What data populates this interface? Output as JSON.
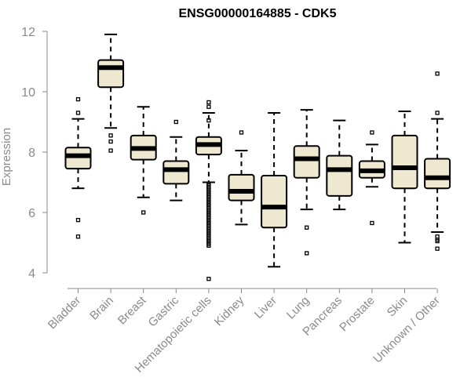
{
  "chart_data": {
    "type": "boxplot",
    "title": "ENSG00000164885 - CDK5",
    "ylabel": "Expression",
    "xlabel": "",
    "ylim": [
      4,
      12
    ],
    "yticks": [
      4,
      6,
      8,
      10,
      12
    ],
    "box_fill": "#efe8d0",
    "categories": [
      "Bladder",
      "Brain",
      "Breast",
      "Gastric",
      "Hematopoietic cells",
      "Kidney",
      "Liver",
      "Lung",
      "Pancreas",
      "Prostate",
      "Skin",
      "Unknown / Other"
    ],
    "boxes": [
      {
        "category": "Bladder",
        "whisker_low": 6.8,
        "q1": 7.45,
        "median": 7.88,
        "q3": 8.15,
        "whisker_high": 9.1,
        "outliers": [
          9.75,
          9.3,
          5.75,
          5.2
        ]
      },
      {
        "category": "Brain",
        "whisker_low": 8.8,
        "q1": 10.15,
        "median": 10.8,
        "q3": 11.05,
        "whisker_high": 11.9,
        "outliers": [
          8.55,
          8.35,
          8.05
        ]
      },
      {
        "category": "Breast",
        "whisker_low": 6.5,
        "q1": 7.75,
        "median": 8.12,
        "q3": 8.55,
        "whisker_high": 9.5,
        "outliers": [
          6.0
        ]
      },
      {
        "category": "Gastric",
        "whisker_low": 6.4,
        "q1": 6.95,
        "median": 7.42,
        "q3": 7.7,
        "whisker_high": 8.5,
        "outliers": [
          9.0
        ]
      },
      {
        "category": "Hematopoietic cells",
        "whisker_low": 7.0,
        "q1": 7.92,
        "median": 8.25,
        "q3": 8.5,
        "whisker_high": 9.3,
        "outliers": [
          9.65,
          9.5,
          9.05,
          3.8,
          4.9,
          5.0,
          5.1,
          5.2,
          5.3,
          5.4,
          5.5,
          5.6,
          5.7,
          5.8,
          5.9,
          6.0,
          6.1,
          6.2,
          6.3,
          6.4,
          6.5,
          6.6,
          6.7,
          6.8,
          6.9,
          4.95,
          5.05,
          5.15,
          5.25,
          5.35,
          5.45,
          5.55,
          5.65,
          5.75,
          5.85,
          5.95,
          6.05,
          6.15,
          6.25,
          6.35,
          6.45,
          6.55,
          6.65,
          6.75,
          6.85,
          6.95
        ]
      },
      {
        "category": "Kidney",
        "whisker_low": 5.6,
        "q1": 6.4,
        "median": 6.7,
        "q3": 7.25,
        "whisker_high": 8.05,
        "outliers": [
          8.65
        ]
      },
      {
        "category": "Liver",
        "whisker_low": 4.2,
        "q1": 5.5,
        "median": 6.18,
        "q3": 7.22,
        "whisker_high": 9.3,
        "outliers": []
      },
      {
        "category": "Lung",
        "whisker_low": 6.1,
        "q1": 7.15,
        "median": 7.78,
        "q3": 8.2,
        "whisker_high": 9.4,
        "outliers": [
          5.5,
          4.65
        ]
      },
      {
        "category": "Pancreas",
        "whisker_low": 6.1,
        "q1": 6.55,
        "median": 7.42,
        "q3": 7.88,
        "whisker_high": 9.05,
        "outliers": []
      },
      {
        "category": "Prostate",
        "whisker_low": 6.85,
        "q1": 7.15,
        "median": 7.38,
        "q3": 7.7,
        "whisker_high": 8.25,
        "outliers": [
          8.65,
          5.65
        ]
      },
      {
        "category": "Skin",
        "whisker_low": 5.0,
        "q1": 6.8,
        "median": 7.48,
        "q3": 8.55,
        "whisker_high": 9.35,
        "outliers": []
      },
      {
        "category": "Unknown / Other",
        "whisker_low": 5.35,
        "q1": 6.8,
        "median": 7.15,
        "q3": 7.78,
        "whisker_high": 9.1,
        "outliers": [
          10.6,
          9.3,
          5.2,
          5.1,
          5.05,
          4.8
        ]
      }
    ]
  }
}
